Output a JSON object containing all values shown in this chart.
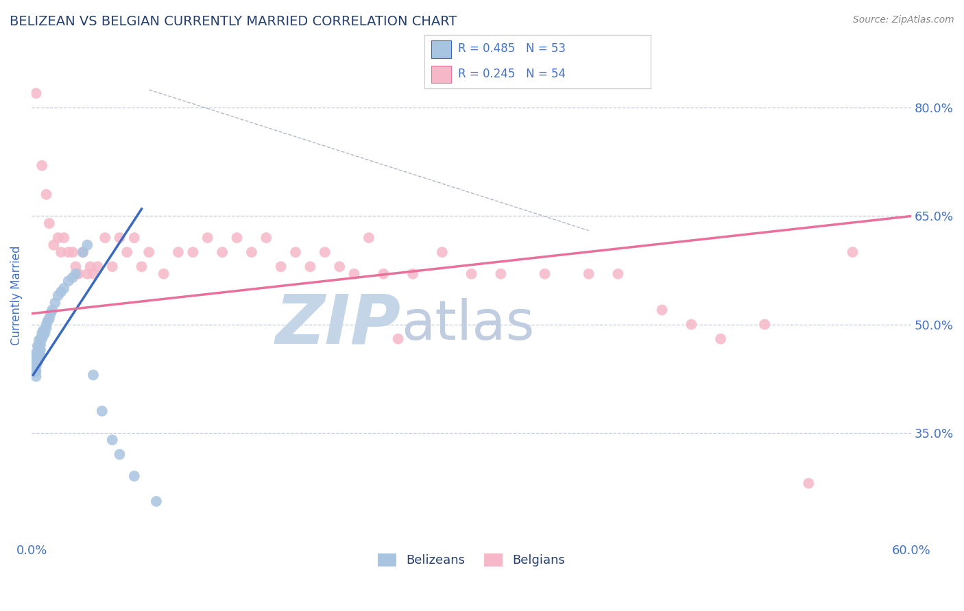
{
  "title": "BELIZEAN VS BELGIAN CURRENTLY MARRIED CORRELATION CHART",
  "source": "Source: ZipAtlas.com",
  "ylabel": "Currently Married",
  "ytick_labels": [
    "80.0%",
    "65.0%",
    "50.0%",
    "35.0%"
  ],
  "ytick_values": [
    0.8,
    0.65,
    0.5,
    0.35
  ],
  "xlim": [
    0.0,
    0.6
  ],
  "ylim": [
    0.2,
    0.88
  ],
  "legend_label1": "R = 0.485   N = 53",
  "legend_label2": "R = 0.245   N = 54",
  "belizean_color": "#a8c4e0",
  "belgian_color": "#f5b8c8",
  "belizean_trend_color": "#3a6abf",
  "belgian_trend_color": "#e8709a",
  "legend_bottom_label1": "Belizeans",
  "legend_bottom_label2": "Belgians",
  "title_color": "#243f6e",
  "axis_label_color": "#4472c4",
  "belizean_x": [
    0.001,
    0.001,
    0.001,
    0.001,
    0.002,
    0.002,
    0.002,
    0.002,
    0.002,
    0.003,
    0.003,
    0.003,
    0.003,
    0.003,
    0.003,
    0.004,
    0.004,
    0.004,
    0.004,
    0.005,
    0.005,
    0.005,
    0.005,
    0.006,
    0.006,
    0.006,
    0.006,
    0.007,
    0.007,
    0.008,
    0.008,
    0.009,
    0.01,
    0.01,
    0.011,
    0.012,
    0.013,
    0.014,
    0.016,
    0.018,
    0.02,
    0.022,
    0.025,
    0.028,
    0.03,
    0.035,
    0.038,
    0.042,
    0.048,
    0.055,
    0.06,
    0.07,
    0.085
  ],
  "belizean_y": [
    0.455,
    0.45,
    0.445,
    0.44,
    0.455,
    0.448,
    0.442,
    0.438,
    0.435,
    0.46,
    0.453,
    0.448,
    0.442,
    0.435,
    0.428,
    0.47,
    0.462,
    0.455,
    0.448,
    0.478,
    0.47,
    0.462,
    0.455,
    0.48,
    0.472,
    0.465,
    0.457,
    0.488,
    0.48,
    0.492,
    0.485,
    0.488,
    0.495,
    0.5,
    0.505,
    0.508,
    0.515,
    0.52,
    0.53,
    0.54,
    0.545,
    0.55,
    0.56,
    0.565,
    0.57,
    0.6,
    0.61,
    0.43,
    0.38,
    0.34,
    0.32,
    0.29,
    0.255
  ],
  "belgian_x": [
    0.003,
    0.007,
    0.01,
    0.012,
    0.015,
    0.018,
    0.02,
    0.022,
    0.025,
    0.028,
    0.03,
    0.032,
    0.035,
    0.038,
    0.04,
    0.042,
    0.045,
    0.05,
    0.055,
    0.06,
    0.065,
    0.07,
    0.075,
    0.08,
    0.09,
    0.1,
    0.11,
    0.12,
    0.13,
    0.14,
    0.15,
    0.16,
    0.17,
    0.18,
    0.19,
    0.2,
    0.21,
    0.22,
    0.23,
    0.24,
    0.25,
    0.26,
    0.28,
    0.3,
    0.32,
    0.35,
    0.38,
    0.4,
    0.43,
    0.45,
    0.47,
    0.5,
    0.53,
    0.56
  ],
  "belgian_y": [
    0.82,
    0.72,
    0.68,
    0.64,
    0.61,
    0.62,
    0.6,
    0.62,
    0.6,
    0.6,
    0.58,
    0.57,
    0.6,
    0.57,
    0.58,
    0.57,
    0.58,
    0.62,
    0.58,
    0.62,
    0.6,
    0.62,
    0.58,
    0.6,
    0.57,
    0.6,
    0.6,
    0.62,
    0.6,
    0.62,
    0.6,
    0.62,
    0.58,
    0.6,
    0.58,
    0.6,
    0.58,
    0.57,
    0.62,
    0.57,
    0.48,
    0.57,
    0.6,
    0.57,
    0.57,
    0.57,
    0.57,
    0.57,
    0.52,
    0.5,
    0.48,
    0.5,
    0.28,
    0.6
  ],
  "belizean_trend_x": [
    0.001,
    0.075
  ],
  "belizean_trend_y": [
    0.43,
    0.66
  ],
  "belgian_trend_x": [
    0.0,
    0.6
  ],
  "belgian_trend_y": [
    0.515,
    0.65
  ],
  "dashed_line_x": [
    0.08,
    0.38
  ],
  "dashed_line_y": [
    0.825,
    0.63
  ],
  "watermark_zip": "ZIP",
  "watermark_atlas": "atlas",
  "watermark_color_zip": "#c5d5e8",
  "watermark_color_atlas": "#c0cce0",
  "grid_color": "#c0c8d8",
  "background_color": "#ffffff"
}
